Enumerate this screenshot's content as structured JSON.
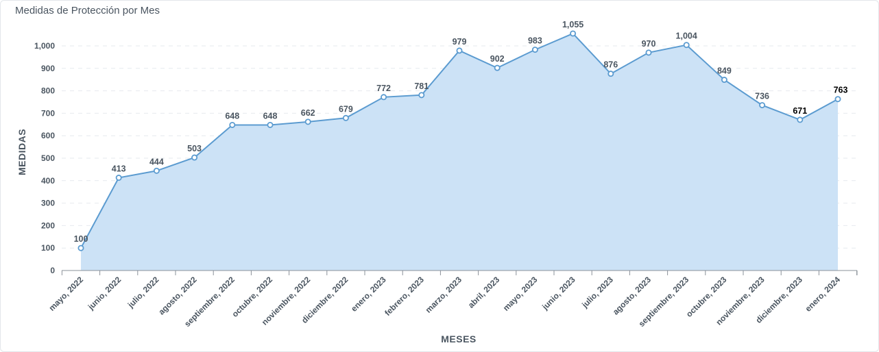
{
  "card": {
    "title": "Medidas de Protección por Mes"
  },
  "chart_data": {
    "type": "area",
    "title": "Medidas de Protección por Mes",
    "xlabel": "MESES",
    "ylabel": "MEDIDAS",
    "ylim": [
      0,
      1100
    ],
    "yticks": [
      0,
      100,
      200,
      300,
      400,
      500,
      600,
      700,
      800,
      900,
      1000
    ],
    "ytick_labels": [
      "0",
      "100",
      "200",
      "300",
      "400",
      "500",
      "600",
      "700",
      "800",
      "900",
      "1,000"
    ],
    "categories": [
      "mayo, 2022",
      "junio, 2022",
      "julio, 2022",
      "agosto, 2022",
      "septiembre, 2022",
      "octubre, 2022",
      "noviembre, 2022",
      "diciembre, 2022",
      "enero, 2023",
      "febrero, 2023",
      "marzo, 2023",
      "abril, 2023",
      "mayo, 2023",
      "junio, 2023",
      "julio, 2023",
      "agosto, 2023",
      "septiembre, 2023",
      "octubre, 2023",
      "noviembre, 2023",
      "diciembre, 2023",
      "enero, 2024"
    ],
    "values": [
      100,
      413,
      444,
      503,
      648,
      648,
      662,
      679,
      772,
      781,
      979,
      902,
      983,
      1055,
      876,
      970,
      1004,
      849,
      736,
      671,
      763
    ],
    "value_labels": [
      "100",
      "413",
      "444",
      "503",
      "648",
      "648",
      "662",
      "679",
      "772",
      "781",
      "979",
      "902",
      "983",
      "1,055",
      "876",
      "970",
      "1,004",
      "849",
      "736",
      "671",
      "763"
    ],
    "grid": true,
    "colors": {
      "line": "#5b9bd0",
      "fill": "#c9e0f5",
      "marker_fill": "#ffffff",
      "text": "#4a5560",
      "grid": "#e6e9ee",
      "axis": "#8a9098"
    }
  }
}
